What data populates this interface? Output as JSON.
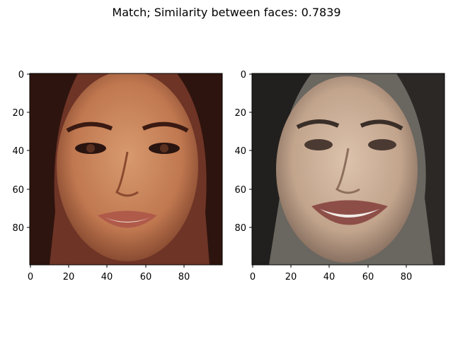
{
  "title": "Match; Similarity between faces: 0.7839",
  "panels": [
    {
      "name": "left",
      "x_ticks": [
        "0",
        "20",
        "40",
        "60",
        "80"
      ],
      "y_ticks": [
        "0",
        "20",
        "40",
        "60",
        "80"
      ],
      "image_description_colors": {
        "skin": "#c9845c",
        "hair": "#3a1b14",
        "bg": "#8a4a3a"
      }
    },
    {
      "name": "right",
      "x_ticks": [
        "0",
        "20",
        "40",
        "60",
        "80"
      ],
      "y_ticks": [
        "0",
        "20",
        "40",
        "60",
        "80"
      ],
      "image_description_colors": {
        "skin": "#c8a890",
        "hair": "#2b2420",
        "bg": "#5a5550"
      }
    }
  ]
}
